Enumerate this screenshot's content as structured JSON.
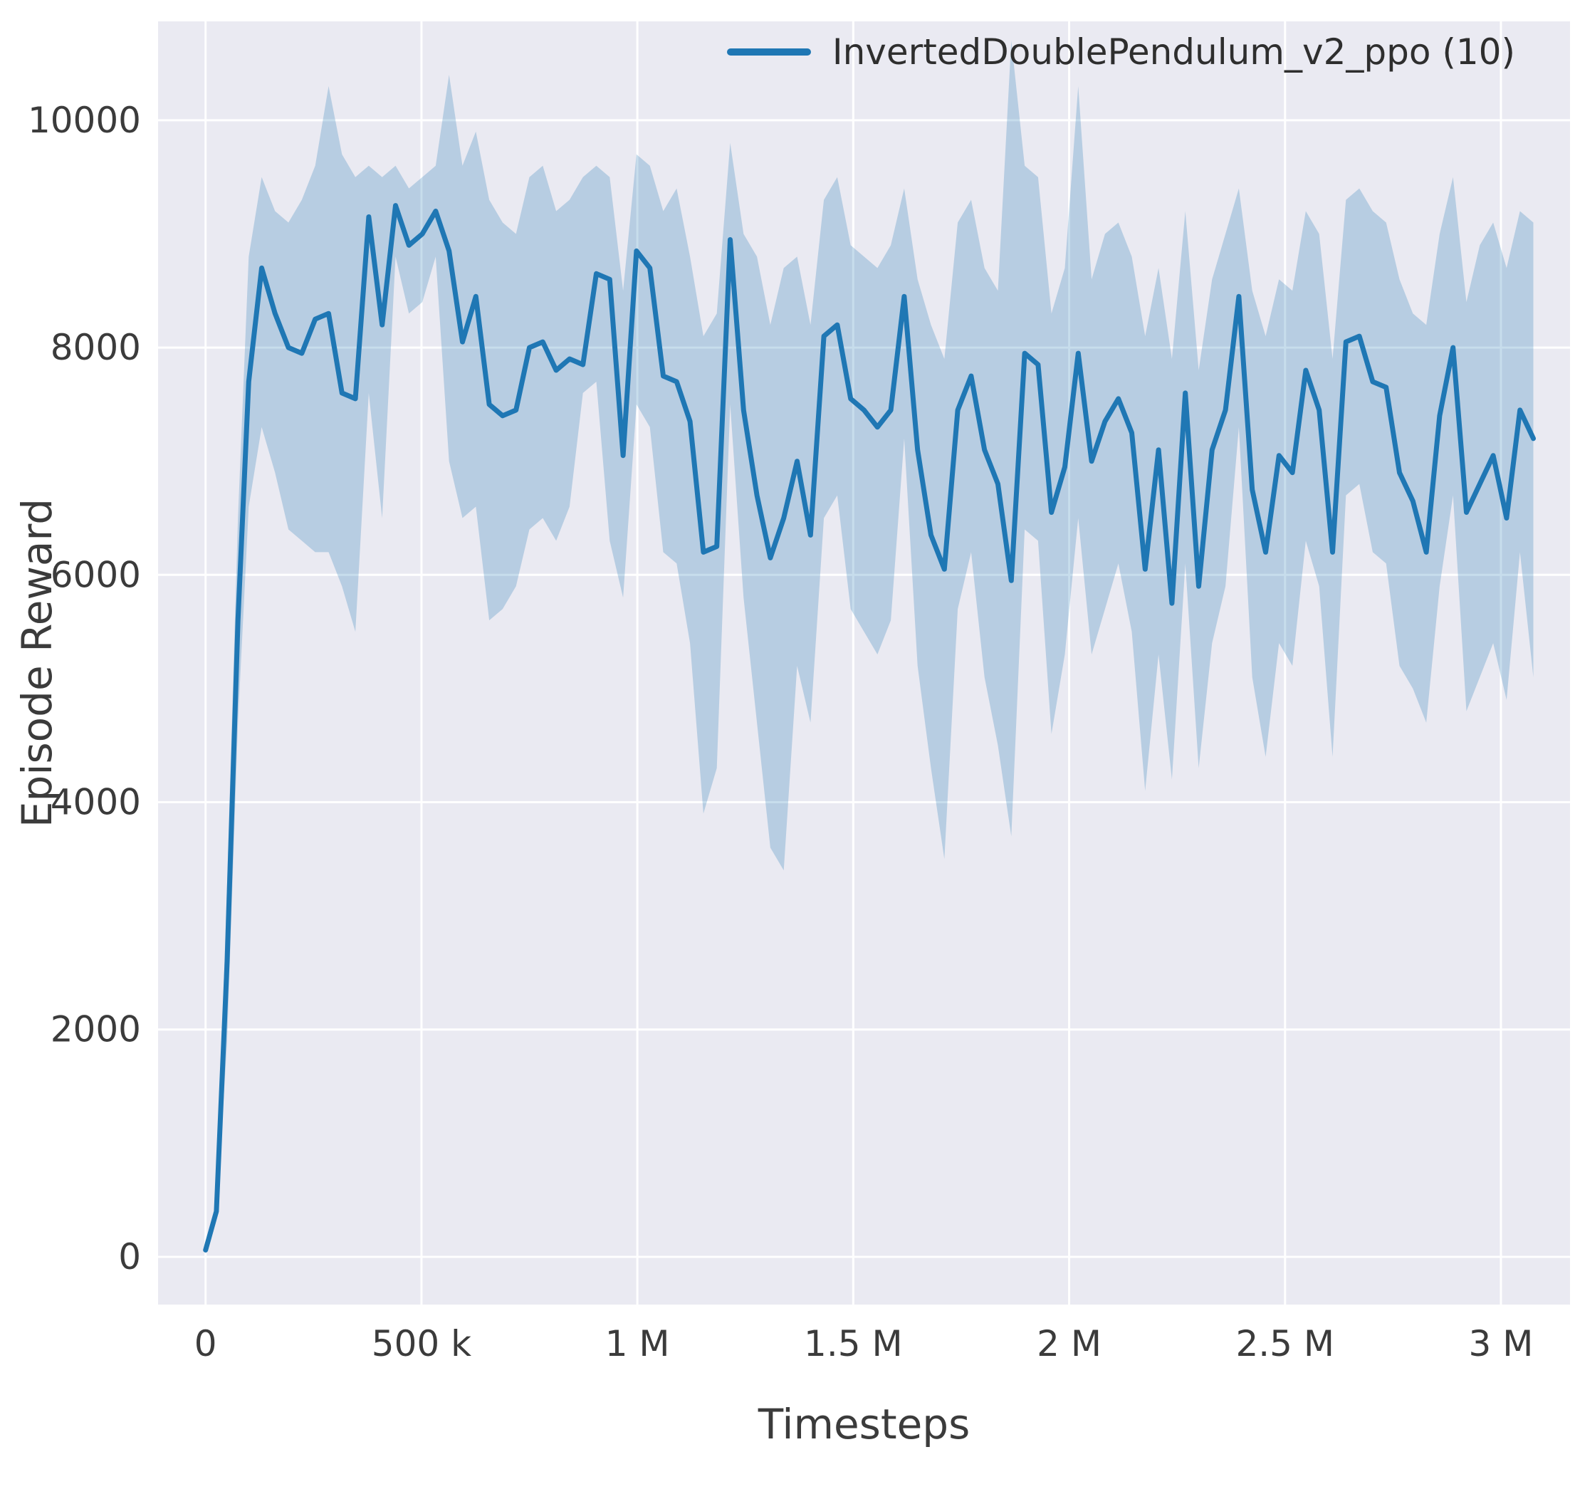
{
  "figure": {
    "xlabel": "Timesteps",
    "ylabel": "Episode Reward"
  },
  "chart_data": {
    "type": "line",
    "title": "",
    "xlabel": "Timesteps",
    "ylabel": "Episode Reward",
    "legend": [
      "InvertedDoublePendulum_v2_ppo (10)"
    ],
    "legend_position": "top-right",
    "grid": true,
    "xlim": [
      -110000,
      3160000
    ],
    "ylim": [
      -420,
      10870
    ],
    "x_ticks": {
      "values": [
        0,
        500000,
        1000000,
        1500000,
        2000000,
        2500000,
        3000000
      ],
      "labels": [
        "0",
        "500 k",
        "1 M",
        "1.5 M",
        "2 M",
        "2.5 M",
        "3 M"
      ]
    },
    "y_ticks": {
      "values": [
        0,
        2000,
        4000,
        6000,
        8000,
        10000
      ],
      "labels": [
        "0",
        "2000",
        "4000",
        "6000",
        "8000",
        "10000"
      ]
    },
    "colors": {
      "line": "#1f77b4",
      "band": "#1f77b4",
      "band_opacity": 0.25,
      "plot_bg": "#eaeaf2",
      "grid": "#ffffff",
      "text": "#3b3b3b"
    },
    "series": [
      {
        "name": "InvertedDoublePendulum_v2_ppo (10)",
        "x": [
          0,
          25000,
          50000,
          75000,
          100000,
          130000,
          161000,
          192000,
          223000,
          254000,
          285000,
          316000,
          347000,
          378000,
          409000,
          440000,
          471000,
          502000,
          533000,
          564000,
          595000,
          626000,
          657000,
          688000,
          719000,
          750000,
          781000,
          812000,
          843000,
          874000,
          905000,
          936000,
          967000,
          998000,
          1029000,
          1060000,
          1091000,
          1122000,
          1153000,
          1184000,
          1215000,
          1246000,
          1277000,
          1308000,
          1339000,
          1370000,
          1401000,
          1432000,
          1463000,
          1494000,
          1525000,
          1556000,
          1587000,
          1618000,
          1649000,
          1680000,
          1711000,
          1742000,
          1773000,
          1804000,
          1835000,
          1866000,
          1897000,
          1928000,
          1959000,
          1990000,
          2021000,
          2052000,
          2083000,
          2114000,
          2145000,
          2176000,
          2207000,
          2238000,
          2269000,
          2300000,
          2331000,
          2362000,
          2393000,
          2424000,
          2455000,
          2486000,
          2517000,
          2548000,
          2579000,
          2610000,
          2641000,
          2672000,
          2703000,
          2734000,
          2765000,
          2796000,
          2827000,
          2858000,
          2889000,
          2920000,
          2951000,
          2982000,
          3013000,
          3044000,
          3075000
        ],
        "y": [
          60,
          400,
          2600,
          5600,
          7700,
          8700,
          8300,
          8000,
          7950,
          8250,
          8300,
          7600,
          7550,
          9150,
          8200,
          9250,
          8900,
          9000,
          9200,
          8850,
          8050,
          8450,
          7500,
          7400,
          7450,
          8000,
          8050,
          7800,
          7900,
          7850,
          8650,
          8600,
          7050,
          8850,
          8700,
          7750,
          7700,
          7350,
          6200,
          6250,
          8950,
          7450,
          6700,
          6150,
          6500,
          7000,
          6350,
          8100,
          8200,
          7550,
          7450,
          7300,
          7450,
          8450,
          7100,
          6350,
          6050,
          7450,
          7750,
          7100,
          6800,
          5950,
          7950,
          7850,
          6550,
          6950,
          7950,
          7000,
          7350,
          7550,
          7250,
          6050,
          7100,
          5750,
          7600,
          5900,
          7100,
          7450,
          8450,
          6750,
          6200,
          7050,
          6900,
          7800,
          7450,
          6200,
          8050,
          8100,
          7700,
          7650,
          6900,
          6650,
          6200,
          7400,
          8000,
          6550,
          6800,
          7050,
          6500,
          7450,
          7200
        ],
        "band_lower": [
          55,
          330,
          1900,
          4700,
          6600,
          7300,
          6900,
          6400,
          6300,
          6200,
          6200,
          5900,
          5500,
          7600,
          6500,
          8800,
          8300,
          8400,
          8800,
          7000,
          6500,
          6600,
          5600,
          5700,
          5900,
          6400,
          6500,
          6300,
          6600,
          7600,
          7700,
          6300,
          5800,
          7500,
          7300,
          6200,
          6100,
          5400,
          3900,
          4300,
          7500,
          5800,
          4700,
          3600,
          3400,
          5200,
          4700,
          6500,
          6700,
          5700,
          5500,
          5300,
          5600,
          7200,
          5200,
          4300,
          3500,
          5700,
          6200,
          5100,
          4500,
          3700,
          6400,
          6300,
          4600,
          5300,
          6500,
          5300,
          5700,
          6100,
          5500,
          4100,
          5300,
          4200,
          6100,
          4300,
          5400,
          5900,
          7300,
          5100,
          4400,
          5400,
          5200,
          6300,
          5900,
          4400,
          6700,
          6800,
          6200,
          6100,
          5200,
          5000,
          4700,
          5900,
          6700,
          4800,
          5100,
          5400,
          4900,
          6200,
          5100
        ],
        "band_upper": [
          65,
          460,
          3300,
          6500,
          8800,
          9500,
          9200,
          9100,
          9300,
          9600,
          10300,
          9700,
          9500,
          9600,
          9500,
          9600,
          9400,
          9500,
          9600,
          10400,
          9600,
          9900,
          9300,
          9100,
          9000,
          9500,
          9600,
          9200,
          9300,
          9500,
          9600,
          9500,
          8500,
          9700,
          9600,
          9200,
          9400,
          8800,
          8100,
          8300,
          9800,
          9000,
          8800,
          8200,
          8700,
          8800,
          8200,
          9300,
          9500,
          8900,
          8800,
          8700,
          8900,
          9400,
          8600,
          8200,
          7900,
          9100,
          9300,
          8700,
          8500,
          10700,
          9600,
          9500,
          8300,
          8700,
          10300,
          8600,
          9000,
          9100,
          8800,
          8100,
          8700,
          7900,
          9200,
          7800,
          8600,
          9000,
          9400,
          8500,
          8100,
          8600,
          8500,
          9200,
          9000,
          7900,
          9300,
          9400,
          9200,
          9100,
          8600,
          8300,
          8200,
          9000,
          9500,
          8400,
          8900,
          9100,
          8700,
          9200,
          9100
        ]
      }
    ]
  }
}
